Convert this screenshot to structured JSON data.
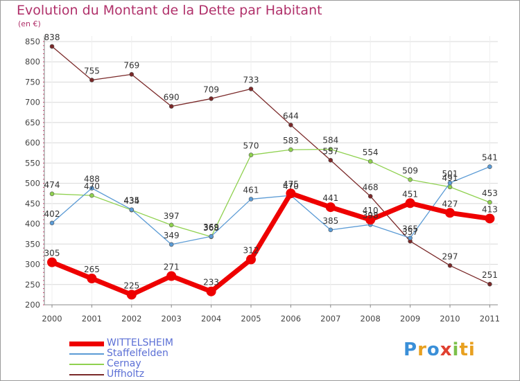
{
  "page": {
    "title": "Evolution du Montant de la Dette par Habitant",
    "subtitle": "(en €)",
    "logo_text": "Proxiti"
  },
  "chart_data": {
    "type": "line",
    "title": "Evolution du Montant de la Dette par Habitant",
    "subtitle": "(en €)",
    "xlabel": "",
    "ylabel": "",
    "x": [
      "2000",
      "2001",
      "2002",
      "2003",
      "2004",
      "2005",
      "2006",
      "2007",
      "2008",
      "2009",
      "2010",
      "2011"
    ],
    "ylim": [
      200,
      850
    ],
    "yticks": [
      200,
      250,
      300,
      350,
      400,
      450,
      500,
      550,
      600,
      650,
      700,
      750,
      800,
      850
    ],
    "grid": "horizontal",
    "legend_position": "bottom-left",
    "series": [
      {
        "name": "WITTELSHEIM",
        "color": "#ee0000",
        "values": [
          305,
          265,
          225,
          271,
          233,
          312,
          475,
          441,
          410,
          451,
          427,
          413
        ],
        "labels": [
          "305",
          "265",
          "225",
          "271",
          "233",
          "312",
          "475",
          "441",
          "410",
          "451",
          "427",
          "413"
        ]
      },
      {
        "name": "Staffelfelden",
        "color": "#5b9bd5",
        "values": [
          402,
          488,
          435,
          349,
          369,
          461,
          470,
          385,
          398,
          365,
          501,
          541
        ],
        "labels": [
          "402",
          "488",
          "435",
          "349",
          "369",
          "461",
          "470",
          "385",
          "398",
          "365",
          "501",
          "541"
        ]
      },
      {
        "name": "Cernay",
        "color": "#8fd14f",
        "values": [
          474,
          470,
          434,
          397,
          368,
          570,
          583,
          584,
          554,
          509,
          491,
          453
        ],
        "labels": [
          "474",
          "470",
          "434",
          "397",
          "368",
          "570",
          "583",
          "584",
          "554",
          "509",
          "491",
          "453"
        ]
      },
      {
        "name": "Uffholtz",
        "color": "#7a2828",
        "values": [
          838,
          755,
          769,
          690,
          709,
          733,
          644,
          557,
          468,
          357,
          297,
          251
        ],
        "labels": [
          "838",
          "755",
          "769",
          "690",
          "709",
          "733",
          "644",
          "557",
          "468",
          "357",
          "297",
          "251"
        ]
      }
    ]
  }
}
